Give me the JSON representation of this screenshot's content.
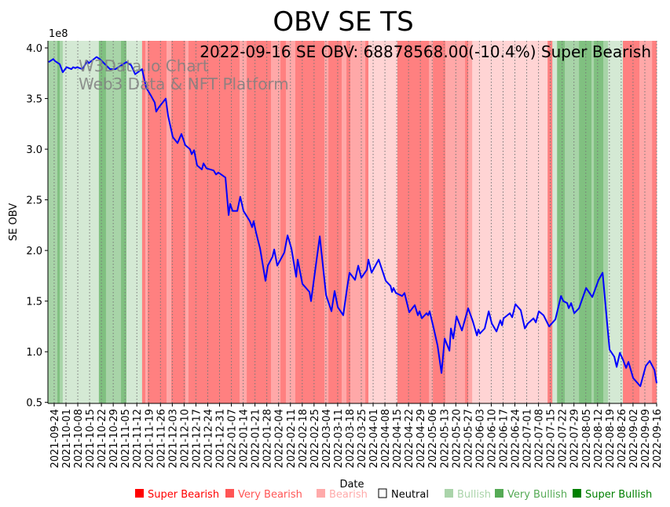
{
  "chart_data": {
    "type": "line",
    "title": "OBV SE TS",
    "annotation": "2022-09-16 SE OBV: 68878568.00(-10.4%) Super Bearish",
    "watermark": [
      "W3Data.io Chart",
      "Web3 Data & NFT Platform"
    ],
    "xlabel": "Date",
    "ylabel": "SE OBV",
    "y_multiplier_label": "1e8",
    "x_origin_date": "2021-09-24",
    "x_unit": "days since 2021-09-24",
    "xlim": [
      -3.7,
      357
    ],
    "ylim": [
      0.49,
      4.07
    ],
    "grid": "vertical dotted at x ticks",
    "y_ticks": [
      0.5,
      1.0,
      1.5,
      2.0,
      2.5,
      3.0,
      3.5,
      4.0
    ],
    "y_tick_labels": [
      "0.5",
      "1.0",
      "1.5",
      "2.0",
      "2.5",
      "3.0",
      "3.5",
      "4.0"
    ],
    "x_tick_step_days": 7,
    "x_tick_labels": [
      "2021-09-24",
      "2021-10-01",
      "2021-10-08",
      "2021-10-15",
      "2021-10-22",
      "2021-10-29",
      "2021-11-05",
      "2021-11-12",
      "2021-11-19",
      "2021-11-26",
      "2021-12-03",
      "2021-12-10",
      "2021-12-17",
      "2021-12-24",
      "2021-12-31",
      "2022-01-07",
      "2022-01-14",
      "2022-01-21",
      "2022-01-28",
      "2022-02-04",
      "2022-02-11",
      "2022-02-18",
      "2022-02-25",
      "2022-03-04",
      "2022-03-11",
      "2022-03-18",
      "2022-03-25",
      "2022-04-01",
      "2022-04-08",
      "2022-04-15",
      "2022-04-22",
      "2022-04-29",
      "2022-05-06",
      "2022-05-13",
      "2022-05-20",
      "2022-05-27",
      "2022-06-03",
      "2022-06-10",
      "2022-06-17",
      "2022-06-24",
      "2022-07-01",
      "2022-07-08",
      "2022-07-15",
      "2022-07-22",
      "2022-07-29",
      "2022-08-05",
      "2022-08-12",
      "2022-08-19",
      "2022-08-26",
      "2022-09-02",
      "2022-09-09",
      "2022-09-16"
    ],
    "series": [
      {
        "name": "SE OBV (x1e8)",
        "color": "#0000ff",
        "points": [
          [
            -3.3,
            3.86
          ],
          [
            -0.5,
            3.89
          ],
          [
            0.5,
            3.87
          ],
          [
            3.3,
            3.84
          ],
          [
            5.1,
            3.76
          ],
          [
            7.4,
            3.81
          ],
          [
            10.2,
            3.79
          ],
          [
            11.2,
            3.81
          ],
          [
            12.6,
            3.8
          ],
          [
            13.5,
            3.81
          ],
          [
            16.8,
            3.79
          ],
          [
            19.6,
            3.87
          ],
          [
            20.5,
            3.85
          ],
          [
            25.1,
            3.91
          ],
          [
            27.0,
            3.89
          ],
          [
            33.1,
            3.79
          ],
          [
            36.3,
            3.79
          ],
          [
            40.0,
            3.83
          ],
          [
            42.8,
            3.86
          ],
          [
            45.6,
            3.83
          ],
          [
            48.0,
            3.74
          ],
          [
            52.1,
            3.79
          ],
          [
            54.5,
            3.61
          ],
          [
            57.3,
            3.53
          ],
          [
            59.6,
            3.46
          ],
          [
            60.5,
            3.37
          ],
          [
            61.9,
            3.41
          ],
          [
            66.1,
            3.5
          ],
          [
            67.5,
            3.33
          ],
          [
            70.3,
            3.12
          ],
          [
            73.1,
            3.06
          ],
          [
            75.4,
            3.15
          ],
          [
            77.7,
            3.04
          ],
          [
            80.5,
            3.0
          ],
          [
            81.5,
            2.95
          ],
          [
            82.9,
            2.99
          ],
          [
            84.7,
            2.84
          ],
          [
            87.5,
            2.8
          ],
          [
            88.5,
            2.86
          ],
          [
            90.3,
            2.81
          ],
          [
            94.5,
            2.79
          ],
          [
            95.9,
            2.75
          ],
          [
            97.3,
            2.77
          ],
          [
            101.5,
            2.72
          ],
          [
            103.4,
            2.35
          ],
          [
            104.3,
            2.46
          ],
          [
            105.7,
            2.39
          ],
          [
            108.5,
            2.39
          ],
          [
            110.3,
            2.53
          ],
          [
            112.2,
            2.39
          ],
          [
            115.9,
            2.29
          ],
          [
            117.3,
            2.23
          ],
          [
            118.2,
            2.29
          ],
          [
            119.6,
            2.18
          ],
          [
            122.0,
            2.02
          ],
          [
            125.2,
            1.7
          ],
          [
            126.6,
            1.85
          ],
          [
            129.4,
            1.94
          ],
          [
            130.4,
            2.01
          ],
          [
            132.2,
            1.85
          ],
          [
            136.4,
            1.98
          ],
          [
            138.3,
            2.15
          ],
          [
            140.6,
            2.02
          ],
          [
            143.4,
            1.74
          ],
          [
            144.3,
            1.91
          ],
          [
            147.1,
            1.67
          ],
          [
            151.3,
            1.59
          ],
          [
            152.2,
            1.5
          ],
          [
            157.4,
            2.14
          ],
          [
            161.1,
            1.56
          ],
          [
            164.3,
            1.4
          ],
          [
            166.2,
            1.6
          ],
          [
            168.1,
            1.44
          ],
          [
            171.3,
            1.36
          ],
          [
            173.6,
            1.63
          ],
          [
            175.0,
            1.78
          ],
          [
            178.3,
            1.71
          ],
          [
            180.2,
            1.85
          ],
          [
            182.0,
            1.73
          ],
          [
            185.3,
            1.81
          ],
          [
            186.2,
            1.91
          ],
          [
            188.1,
            1.78
          ],
          [
            192.3,
            1.91
          ],
          [
            196.5,
            1.7
          ],
          [
            199.3,
            1.65
          ],
          [
            200.2,
            1.59
          ],
          [
            201.1,
            1.63
          ],
          [
            202.5,
            1.58
          ],
          [
            206.2,
            1.55
          ],
          [
            207.6,
            1.58
          ],
          [
            210.4,
            1.39
          ],
          [
            213.7,
            1.46
          ],
          [
            215.5,
            1.36
          ],
          [
            216.5,
            1.4
          ],
          [
            217.9,
            1.33
          ],
          [
            220.7,
            1.38
          ],
          [
            221.6,
            1.36
          ],
          [
            222.5,
            1.4
          ],
          [
            224.9,
            1.23
          ],
          [
            227.2,
            1.06
          ],
          [
            229.5,
            0.79
          ],
          [
            231.4,
            1.13
          ],
          [
            234.2,
            1.01
          ],
          [
            235.1,
            1.23
          ],
          [
            236.5,
            1.13
          ],
          [
            238.4,
            1.35
          ],
          [
            241.6,
            1.21
          ],
          [
            245.3,
            1.43
          ],
          [
            248.1,
            1.3
          ],
          [
            250.5,
            1.16
          ],
          [
            251.4,
            1.22
          ],
          [
            252.3,
            1.18
          ],
          [
            255.1,
            1.23
          ],
          [
            257.5,
            1.4
          ],
          [
            259.3,
            1.28
          ],
          [
            262.1,
            1.2
          ],
          [
            264.4,
            1.31
          ],
          [
            265.4,
            1.26
          ],
          [
            266.3,
            1.33
          ],
          [
            270.0,
            1.38
          ],
          [
            271.4,
            1.34
          ],
          [
            273.3,
            1.47
          ],
          [
            276.5,
            1.41
          ],
          [
            278.9,
            1.23
          ],
          [
            280.7,
            1.28
          ],
          [
            284.0,
            1.33
          ],
          [
            285.4,
            1.29
          ],
          [
            287.2,
            1.4
          ],
          [
            290.0,
            1.36
          ],
          [
            293.3,
            1.25
          ],
          [
            297.0,
            1.32
          ],
          [
            300.3,
            1.55
          ],
          [
            301.7,
            1.5
          ],
          [
            304.0,
            1.48
          ],
          [
            304.9,
            1.43
          ],
          [
            306.3,
            1.48
          ],
          [
            308.2,
            1.38
          ],
          [
            311.0,
            1.43
          ],
          [
            315.2,
            1.63
          ],
          [
            318.9,
            1.54
          ],
          [
            322.6,
            1.71
          ],
          [
            325.0,
            1.78
          ],
          [
            327.7,
            1.28
          ],
          [
            329.1,
            1.02
          ],
          [
            331.9,
            0.95
          ],
          [
            333.3,
            0.85
          ],
          [
            335.2,
            0.99
          ],
          [
            337.1,
            0.92
          ],
          [
            338.9,
            0.84
          ],
          [
            340.3,
            0.9
          ],
          [
            343.1,
            0.74
          ],
          [
            347.3,
            0.66
          ],
          [
            350.6,
            0.86
          ],
          [
            352.9,
            0.91
          ],
          [
            355.7,
            0.82
          ],
          [
            357.0,
            0.69
          ]
        ]
      }
    ],
    "sentiment_bands": [
      [
        -3.7,
        1.9,
        "very_bullish"
      ],
      [
        1.9,
        3.3,
        "super_bullish"
      ],
      [
        3.3,
        5.1,
        "very_bullish"
      ],
      [
        5.1,
        26.5,
        "bullish"
      ],
      [
        26.5,
        30.7,
        "super_bullish"
      ],
      [
        30.7,
        39.6,
        "very_bullish"
      ],
      [
        39.6,
        42.8,
        "super_bullish"
      ],
      [
        42.8,
        52.1,
        "bullish"
      ],
      [
        52.1,
        54,
        "super_bearish"
      ],
      [
        54,
        55.4,
        "very_bearish"
      ],
      [
        55.4,
        66.6,
        "super_bearish"
      ],
      [
        66.6,
        69.4,
        "very_bearish"
      ],
      [
        69.4,
        77.7,
        "super_bearish"
      ],
      [
        77.7,
        79.6,
        "very_bearish"
      ],
      [
        79.6,
        109.9,
        "super_bearish"
      ],
      [
        109.9,
        114.1,
        "very_bearish"
      ],
      [
        114.1,
        128.5,
        "super_bearish"
      ],
      [
        128.5,
        134.1,
        "very_bearish"
      ],
      [
        134.1,
        137.3,
        "super_bearish"
      ],
      [
        137.3,
        142.9,
        "very_bearish"
      ],
      [
        142.9,
        160.1,
        "super_bearish"
      ],
      [
        160.1,
        162.5,
        "very_bearish"
      ],
      [
        162.5,
        170.4,
        "super_bearish"
      ],
      [
        170.4,
        173.2,
        "very_bearish"
      ],
      [
        173.2,
        175.5,
        "super_bearish"
      ],
      [
        175.5,
        184.4,
        "very_bearish"
      ],
      [
        184.4,
        186.2,
        "super_bearish"
      ],
      [
        186.2,
        203.4,
        "bearish"
      ],
      [
        203.4,
        222.1,
        "super_bearish"
      ],
      [
        222.1,
        224.4,
        "very_bearish"
      ],
      [
        224.4,
        231.8,
        "super_bearish"
      ],
      [
        231.8,
        243.5,
        "very_bearish"
      ],
      [
        243.5,
        245.3,
        "super_bearish"
      ],
      [
        245.3,
        247.7,
        "very_bearish"
      ],
      [
        247.7,
        292.4,
        "bearish"
      ],
      [
        292.4,
        295.2,
        "super_bearish"
      ],
      [
        295.2,
        298,
        "bullish"
      ],
      [
        298,
        302.6,
        "super_bullish"
      ],
      [
        302.6,
        311,
        "very_bullish"
      ],
      [
        311,
        318.4,
        "super_bullish"
      ],
      [
        318.4,
        319.8,
        "very_bullish"
      ],
      [
        319.8,
        325.4,
        "super_bullish"
      ],
      [
        325.4,
        328.2,
        "very_bullish"
      ],
      [
        328.2,
        337,
        "bullish"
      ],
      [
        337,
        346.8,
        "super_bearish"
      ],
      [
        346.8,
        354.3,
        "very_bearish"
      ],
      [
        354.3,
        357,
        "super_bearish"
      ]
    ],
    "band_colors": {
      "super_bearish": "#ff8080",
      "very_bearish": "#ffa8a8",
      "bearish": "#ffd4d4",
      "neutral": "#ffffff",
      "bullish": "#d4e9d4",
      "very_bullish": "#a8d4a8",
      "super_bullish": "#80c080"
    },
    "legend": {
      "placement": "bottom",
      "entries": [
        {
          "label": "Super Bearish",
          "color": "#ff0000",
          "key": "super_bearish"
        },
        {
          "label": "Very Bearish",
          "color": "#ff5555",
          "key": "very_bearish"
        },
        {
          "label": "Bearish",
          "color": "#ffaaaa",
          "key": "bearish"
        },
        {
          "label": "Neutral",
          "color": "#000000",
          "key": "neutral"
        },
        {
          "label": "Bullish",
          "color": "#aad4aa",
          "key": "bullish"
        },
        {
          "label": "Very Bullish",
          "color": "#55aa55",
          "key": "very_bullish"
        },
        {
          "label": "Super Bullish",
          "color": "#008000",
          "key": "super_bullish"
        }
      ]
    }
  }
}
